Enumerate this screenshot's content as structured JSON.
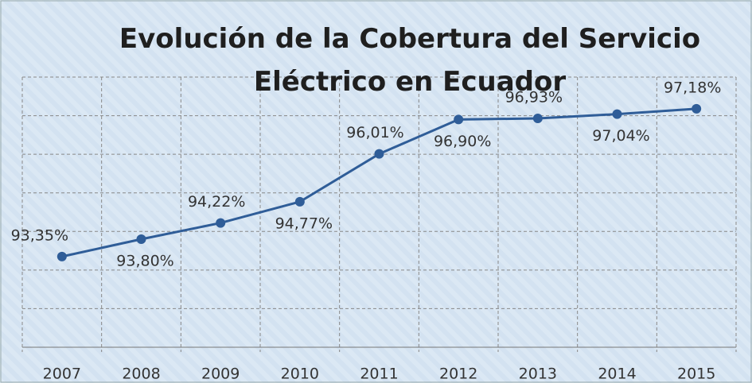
{
  "chart_data": {
    "type": "line",
    "title": "Evolución de la Cobertura del Servicio Eléctrico en Ecuador",
    "categories": [
      "2007",
      "2008",
      "2009",
      "2010",
      "2011",
      "2012",
      "2013",
      "2014",
      "2015"
    ],
    "values": [
      93.35,
      93.8,
      94.22,
      94.77,
      96.01,
      96.9,
      96.93,
      97.04,
      97.18
    ],
    "value_labels": [
      "93,35%",
      "93,80%",
      "94,22%",
      "94,77%",
      "96,01%",
      "96,90%",
      "96,93%",
      "97,04%",
      "97,18%"
    ],
    "color": "#2f5d98",
    "ylim": [
      91,
      98
    ],
    "yticks": [
      91,
      92,
      93,
      94,
      95,
      96,
      97,
      98
    ],
    "grid": true
  }
}
